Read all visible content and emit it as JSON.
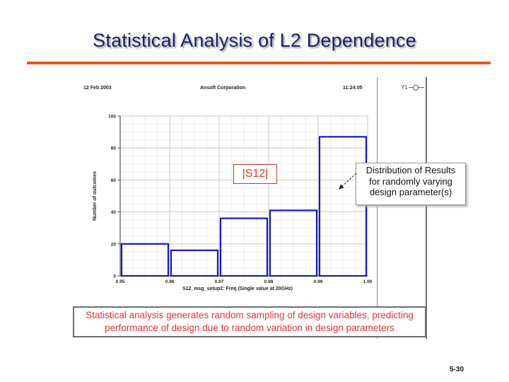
{
  "slide": {
    "title": "Statistical Analysis of L2 Dependence",
    "page_number": "5-30",
    "accent_color": "#e8561c"
  },
  "plot_window": {
    "date": "12 Feb 2003",
    "company": "Ansoft Corporation",
    "time": "11:24:05",
    "legend_label": "Y1",
    "trace_label": "|S12|",
    "callout": [
      "Distribution of Results",
      "for randomly varying",
      "design parameter(s)"
    ]
  },
  "caption": {
    "line1": "Statistical analysis generates random sampling of design variables, predicting",
    "line2": "performance of design due to random variation in design parameters"
  },
  "chart_data": {
    "type": "bar",
    "xlabel": "S12_msg_setup2: Freq (Single value at 20GHz)",
    "ylabel": "Number of outcomes",
    "xlim": [
      0.95,
      1.0
    ],
    "ylim": [
      0,
      100
    ],
    "x_ticks": [
      "0.95",
      "0.96",
      "0.97",
      "0.98",
      "0.99",
      "1.00"
    ],
    "y_ticks": [
      "0",
      "20",
      "40",
      "60",
      "80",
      "100"
    ],
    "bins": [
      {
        "start": 0.95,
        "end": 0.96,
        "value": 20
      },
      {
        "start": 0.96,
        "end": 0.97,
        "value": 16
      },
      {
        "start": 0.97,
        "end": 0.98,
        "value": 36
      },
      {
        "start": 0.98,
        "end": 0.99,
        "value": 41
      },
      {
        "start": 0.99,
        "end": 1.0,
        "value": 87
      }
    ],
    "bar_color": "#1a1ab8",
    "grid": true
  }
}
